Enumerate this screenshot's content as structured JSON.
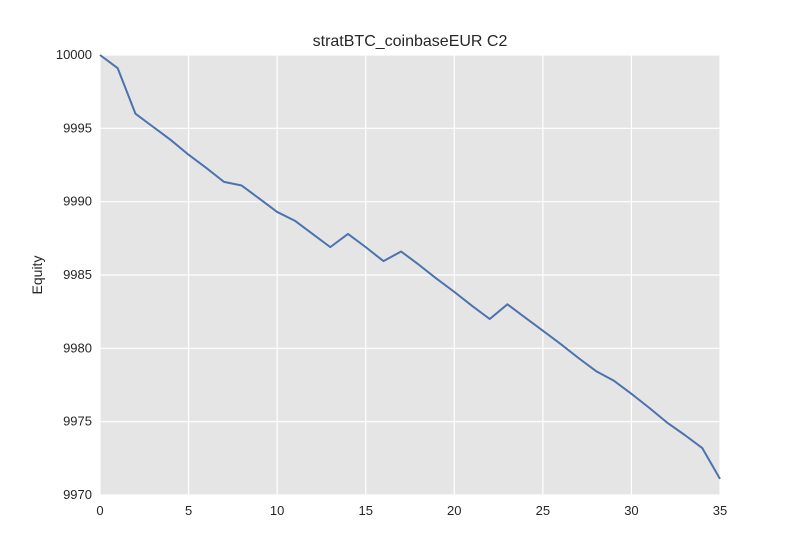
{
  "chart_data": {
    "type": "line",
    "title": "stratBTC_coinbaseEUR C2",
    "xlabel": "",
    "ylabel": "Equity",
    "xlim": [
      0,
      35
    ],
    "ylim": [
      9970,
      10000
    ],
    "xticks": [
      0,
      5,
      10,
      15,
      20,
      25,
      30,
      35
    ],
    "xtick_labels": [
      "0",
      "5",
      "10",
      "15",
      "20",
      "25",
      "30",
      "35"
    ],
    "yticks": [
      9970,
      9975,
      9980,
      9985,
      9990,
      9995,
      10000
    ],
    "ytick_labels": [
      "9970",
      "9975",
      "9980",
      "9985",
      "9990",
      "9995",
      "10000"
    ],
    "grid": true,
    "series": [
      {
        "color": "#4c72b0",
        "x": [
          0,
          1,
          2,
          3,
          4,
          5,
          6,
          7,
          8,
          9,
          10,
          11,
          12,
          13,
          14,
          15,
          16,
          17,
          18,
          19,
          20,
          21,
          22,
          23,
          24,
          25,
          26,
          27,
          28,
          29,
          30,
          31,
          32,
          33,
          34,
          35
        ],
        "y": [
          10000,
          9999.1,
          9996.0,
          9995.1,
          9994.2,
          9993.2,
          9992.3,
          9991.35,
          9991.1,
          9990.2,
          9989.3,
          9988.7,
          9987.8,
          9986.9,
          9987.8,
          9986.9,
          9985.95,
          9986.6,
          9985.7,
          9984.75,
          9983.85,
          9982.9,
          9982.0,
          9983.0,
          9982.1,
          9981.2,
          9980.3,
          9979.35,
          9978.45,
          9977.8,
          9976.9,
          9975.95,
          9974.95,
          9974.1,
          9973.2,
          9971.1
        ]
      }
    ]
  },
  "colors": {
    "plot_background": "#e5e5e5",
    "grid": "#ffffff",
    "line": "#4c72b0"
  }
}
